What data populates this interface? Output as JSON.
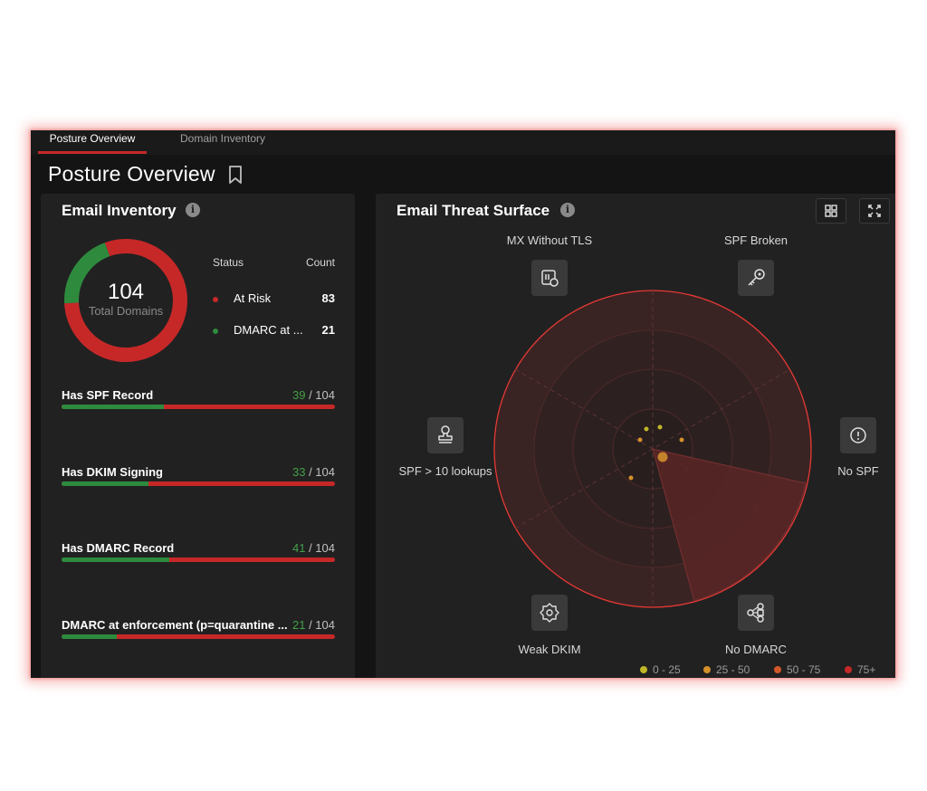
{
  "tabs": [
    {
      "label": "Posture Overview",
      "active": true
    },
    {
      "label": "Domain Inventory",
      "active": false
    }
  ],
  "page_title": "Posture Overview",
  "email_inventory": {
    "title": "Email Inventory",
    "info_icon": "i",
    "donut": {
      "total": "104",
      "caption": "Total Domains",
      "segments": [
        {
          "name": "At Risk",
          "value": 83,
          "color": "#c62828"
        },
        {
          "name": "DMARC at enforcement",
          "value": 21,
          "color": "#2e8b3e"
        }
      ]
    },
    "status_header": "Status",
    "count_header": "Count",
    "statuses": [
      {
        "label": "At Risk",
        "count": "83",
        "color": "#c62828"
      },
      {
        "label": "DMARC at ...",
        "count": "21",
        "color": "#2e8b3e"
      }
    ],
    "metrics": [
      {
        "label": "Has SPF Record",
        "good": "39",
        "total": "/ 104",
        "fraction": 0.375
      },
      {
        "label": "Has DKIM Signing",
        "good": "33",
        "total": "/ 104",
        "fraction": 0.317
      },
      {
        "label": "Has DMARC Record",
        "good": "41",
        "total": "/ 104",
        "fraction": 0.394
      },
      {
        "label": "DMARC at enforcement (p=quarantine ...",
        "good": "21",
        "total": "/ 104",
        "fraction": 0.202
      }
    ]
  },
  "threat_surface": {
    "title": "Email Threat Surface",
    "info_icon": "i",
    "grid_button_icon": "grid-icon",
    "expand_button_icon": "expand-icon",
    "categories": [
      {
        "label": "MX Without TLS",
        "icon": "mx-tls-icon"
      },
      {
        "label": "SPF Broken",
        "icon": "key-icon"
      },
      {
        "label": "No SPF",
        "icon": "exclamation-circle-icon"
      },
      {
        "label": "No DMARC",
        "icon": "nodes-icon"
      },
      {
        "label": "Weak DKIM",
        "icon": "badge-icon"
      },
      {
        "label": "SPF > 10 lookups",
        "icon": "stamp-icon"
      }
    ],
    "legend": [
      {
        "label": "0 - 25",
        "color": "#c0b628"
      },
      {
        "label": "25 - 50",
        "color": "#d4902a"
      },
      {
        "label": "50 - 75",
        "color": "#d2582a"
      },
      {
        "label": "75+",
        "color": "#c62828"
      }
    ],
    "colors": {
      "ring": "#e53935",
      "fill": "#3a2323",
      "sector": "#5a2626"
    }
  }
}
